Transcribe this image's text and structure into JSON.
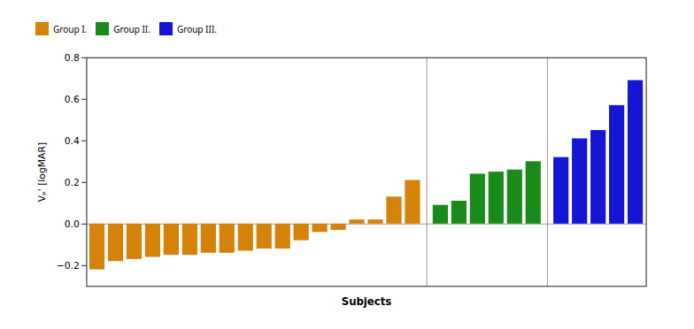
{
  "chart_data": {
    "type": "bar",
    "xlabel": "Subjects",
    "ylabel": "Vₚ' [logMAR]",
    "categories": [
      null,
      null,
      null,
      null,
      null,
      null,
      null,
      null,
      null,
      null,
      null,
      null,
      null,
      null,
      null,
      null,
      null,
      null,
      null,
      null,
      null,
      null,
      null,
      null,
      null,
      null,
      null,
      null,
      null
    ],
    "series": [
      {
        "name": "Group I.",
        "color": "#D4820A",
        "values": [
          -0.22,
          -0.18,
          -0.17,
          -0.16,
          -0.15,
          -0.15,
          -0.14,
          -0.14,
          -0.13,
          -0.12,
          -0.12,
          -0.08,
          -0.04,
          -0.03,
          0.02,
          0.02,
          0.13,
          0.21,
          null,
          null,
          null,
          null,
          null,
          null,
          null,
          null,
          null,
          null,
          null
        ]
      },
      {
        "name": "Group II.",
        "color": "#1A8A1A",
        "values": [
          null,
          null,
          null,
          null,
          null,
          null,
          null,
          null,
          null,
          null,
          null,
          null,
          null,
          null,
          null,
          null,
          null,
          null,
          0.09,
          0.11,
          0.24,
          0.25,
          0.26,
          0.3,
          null,
          null,
          null,
          null,
          null
        ]
      },
      {
        "name": "Group III.",
        "color": "#1515D4",
        "values": [
          null,
          null,
          null,
          null,
          null,
          null,
          null,
          null,
          null,
          null,
          null,
          null,
          null,
          null,
          null,
          null,
          null,
          null,
          null,
          null,
          null,
          null,
          null,
          null,
          0.32,
          0.41,
          0.45,
          0.57,
          0.69
        ]
      }
    ],
    "ylim": [
      -0.3,
      0.8
    ],
    "yticks": [
      -0.2,
      0.0,
      0.2,
      0.4,
      0.6,
      0.8
    ],
    "tick_labels": "y",
    "grid": false,
    "legend": "upper left"
  }
}
